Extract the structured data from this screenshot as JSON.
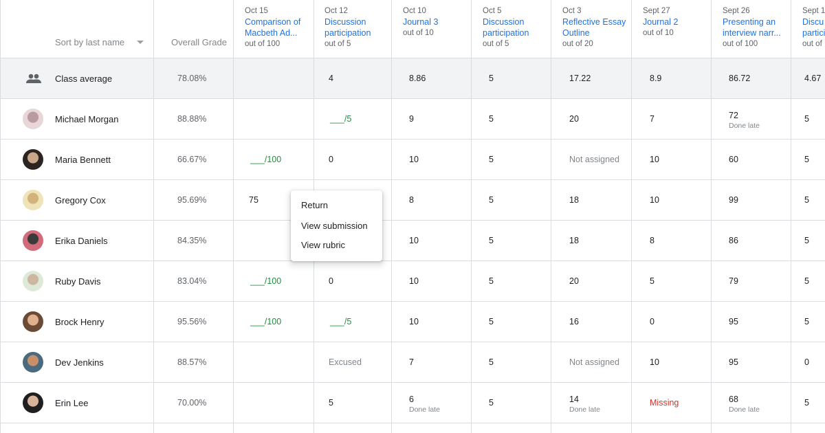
{
  "header": {
    "sort_label": "Sort by last name",
    "overall_label": "Overall Grade",
    "assignments": [
      {
        "date": "Oct 15",
        "title": "Comparison of Macbeth Ad...",
        "points": "out of 100"
      },
      {
        "date": "Oct 12",
        "title": "Discussion participation",
        "points": "out of 5"
      },
      {
        "date": "Oct 10",
        "title": "Journal 3",
        "points": "out of 10"
      },
      {
        "date": "Oct 5",
        "title": "Discussion participation",
        "points": "out of 5"
      },
      {
        "date": "Oct 3",
        "title": "Reflective Essay Outline",
        "points": "out of 20"
      },
      {
        "date": "Sept 27",
        "title": "Journal 2",
        "points": "out of 10"
      },
      {
        "date": "Sept 26",
        "title": "Presenting an interview narr...",
        "points": "out of 100"
      },
      {
        "date": "Sept 1",
        "title": "Discu partici",
        "points": "out of"
      }
    ]
  },
  "class_average": {
    "label": "Class average",
    "overall": "78.08%",
    "grades": [
      "",
      "4",
      "8.86",
      "5",
      "17.22",
      "8.9",
      "86.72",
      "4.67"
    ]
  },
  "students": [
    {
      "name": "Michael Morgan",
      "overall": "88.88%",
      "grades": [
        {
          "v": ""
        },
        {
          "v": "___/5",
          "c": "green"
        },
        {
          "v": "9"
        },
        {
          "v": "5"
        },
        {
          "v": "20"
        },
        {
          "v": "7"
        },
        {
          "v": "72",
          "sub": "Done late"
        },
        {
          "v": "5"
        }
      ]
    },
    {
      "name": "Maria Bennett",
      "overall": "66.67%",
      "grades": [
        {
          "v": "___/100",
          "c": "green"
        },
        {
          "v": "0"
        },
        {
          "v": "10"
        },
        {
          "v": "5"
        },
        {
          "v": "Not assigned",
          "c": "gray"
        },
        {
          "v": "10"
        },
        {
          "v": "60"
        },
        {
          "v": "5"
        }
      ]
    },
    {
      "name": "Gregory Cox",
      "overall": "95.69%",
      "grades": [
        {
          "v": "75"
        },
        {
          "v": ""
        },
        {
          "v": "8"
        },
        {
          "v": "5"
        },
        {
          "v": "18"
        },
        {
          "v": "10"
        },
        {
          "v": "99"
        },
        {
          "v": "5"
        }
      ]
    },
    {
      "name": "Erika Daniels",
      "overall": "84.35%",
      "grades": [
        {
          "v": ""
        },
        {
          "v": ""
        },
        {
          "v": "10"
        },
        {
          "v": "5"
        },
        {
          "v": "18"
        },
        {
          "v": "8"
        },
        {
          "v": "86"
        },
        {
          "v": "5"
        }
      ]
    },
    {
      "name": "Ruby Davis",
      "overall": "83.04%",
      "grades": [
        {
          "v": "___/100",
          "c": "green"
        },
        {
          "v": "0"
        },
        {
          "v": "10"
        },
        {
          "v": "5"
        },
        {
          "v": "20"
        },
        {
          "v": "5"
        },
        {
          "v": "79"
        },
        {
          "v": "5"
        }
      ]
    },
    {
      "name": "Brock Henry",
      "overall": "95.56%",
      "grades": [
        {
          "v": "___/100",
          "c": "green"
        },
        {
          "v": "___/5",
          "c": "green"
        },
        {
          "v": "10"
        },
        {
          "v": "5"
        },
        {
          "v": "16"
        },
        {
          "v": "0"
        },
        {
          "v": "95"
        },
        {
          "v": "5"
        }
      ]
    },
    {
      "name": "Dev Jenkins",
      "overall": "88.57%",
      "grades": [
        {
          "v": ""
        },
        {
          "v": "Excused",
          "c": "gray"
        },
        {
          "v": "7"
        },
        {
          "v": "5"
        },
        {
          "v": "Not assigned",
          "c": "gray"
        },
        {
          "v": "10"
        },
        {
          "v": "95"
        },
        {
          "v": "0"
        }
      ]
    },
    {
      "name": "Erin Lee",
      "overall": "70.00%",
      "grades": [
        {
          "v": ""
        },
        {
          "v": "5"
        },
        {
          "v": "6",
          "sub": "Done late"
        },
        {
          "v": "5"
        },
        {
          "v": "14",
          "sub": "Done late"
        },
        {
          "v": "Missing",
          "c": "red"
        },
        {
          "v": "68",
          "sub": "Done late"
        },
        {
          "v": "5"
        }
      ]
    }
  ],
  "context_menu": {
    "items": [
      "Return",
      "View submission",
      "View rubric"
    ]
  },
  "icons": {
    "class_average": "people-icon"
  },
  "colors": {
    "link": "#1a73e8",
    "pending": "#1e8e3e",
    "missing": "#d93025",
    "muted": "#80868b"
  }
}
